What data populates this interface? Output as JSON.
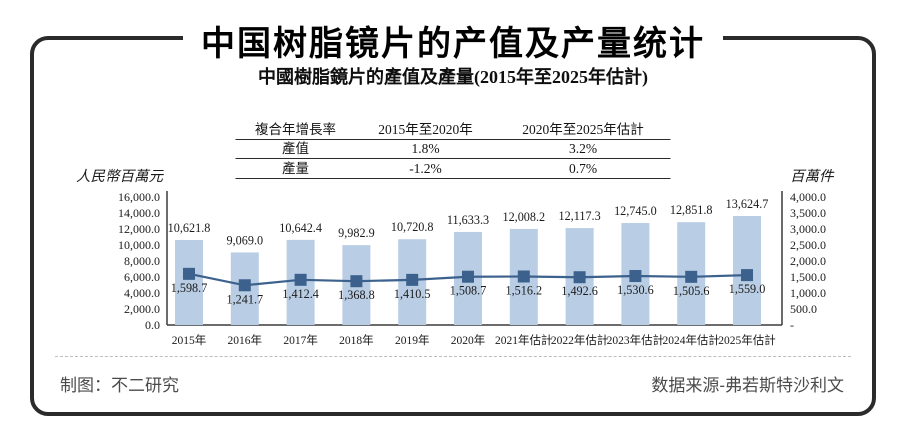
{
  "page": {
    "title": "中国树脂镜片的产值及产量统计",
    "subtitle": "中國樹脂鏡片的產值及產量(2015年至2025年估計)",
    "footer_left": "制图：不二研究",
    "footer_right": "数据来源-弗若斯特沙利文"
  },
  "growth_table": {
    "headers": [
      "複合年增長率",
      "2015年至2020年",
      "2020年至2025年估計"
    ],
    "rows": [
      [
        "產值",
        "1.8%",
        "3.2%"
      ],
      [
        "產量",
        "-1.2%",
        "0.7%"
      ]
    ]
  },
  "chart_data": {
    "type": "bar",
    "subtype": "combo: bars (left axis) + line with square markers (right axis), dual y-axis, no gridlines, no legend, value labels shown",
    "title": "中國樹脂鏡片的產值及產量(2015年至2025年估計)",
    "categories": [
      "2015年",
      "2016年",
      "2017年",
      "2018年",
      "2019年",
      "2020年",
      "2021年估計",
      "2022年估計",
      "2023年估計",
      "2024年估計",
      "2025年估計"
    ],
    "series": [
      {
        "name": "產值",
        "chart_type": "bar",
        "axis": "left",
        "unit": "人民幣百萬元",
        "color": "#b9cde4",
        "values": [
          10621.8,
          9069.0,
          10642.4,
          9982.9,
          10720.8,
          11633.3,
          12008.2,
          12117.3,
          12745.0,
          12851.8,
          13624.7
        ]
      },
      {
        "name": "產量",
        "chart_type": "line",
        "axis": "right",
        "unit": "百萬件",
        "color": "#3b618c",
        "values": [
          1598.7,
          1241.7,
          1412.4,
          1368.8,
          1410.5,
          1508.7,
          1516.2,
          1492.6,
          1530.6,
          1505.6,
          1559.0
        ]
      }
    ],
    "left_axis": {
      "unit_label": "人民幣百萬元",
      "min": 0,
      "max": 16000,
      "step": 2000,
      "ticks": [
        "16,000.0",
        "14,000.0",
        "12,000.0",
        "10,000.0",
        "8,000.0",
        "6,000.0",
        "4,000.0",
        "2,000.0",
        "0.0"
      ]
    },
    "right_axis": {
      "unit_label": "百萬件",
      "min": 0,
      "max": 4000,
      "step": 500,
      "ticks": [
        "4,000.0",
        "3,500.0",
        "3,000.0",
        "2,500.0",
        "2,000.0",
        "1,500.0",
        "1,000.0",
        "500.0",
        "-"
      ]
    },
    "grid": false,
    "legend_position": "none",
    "colors": {
      "bar": "#b9cde4",
      "line": "#3b618c",
      "axis": "#3c3c3c",
      "text": "#1b1b1b",
      "frame_border": "#2b2b2b"
    }
  }
}
